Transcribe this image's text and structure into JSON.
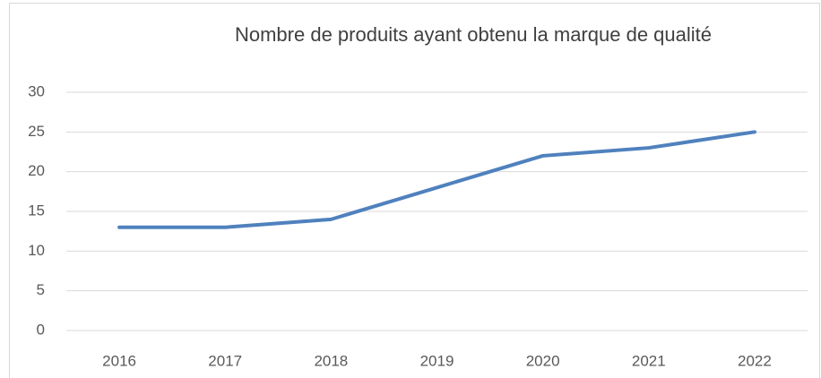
{
  "chart_data": {
    "type": "line",
    "title": "Nombre de produits ayant obtenu la marque de qualité",
    "categories": [
      "2016",
      "2017",
      "2018",
      "2019",
      "2020",
      "2021",
      "2022"
    ],
    "values": [
      13,
      13,
      14,
      18,
      22,
      23,
      25
    ],
    "color": "#4f81bd",
    "ylim": [
      0,
      30
    ],
    "yticks": [
      0,
      5,
      10,
      15,
      20,
      25,
      30
    ],
    "grid": true
  }
}
